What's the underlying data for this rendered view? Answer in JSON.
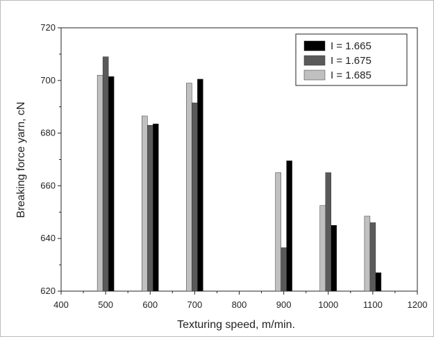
{
  "chart_data": {
    "type": "bar",
    "title": "",
    "xlabel": "Texturing speed, m/min.",
    "ylabel": "Breaking force yarn, cN",
    "x_ticks": [
      "400",
      "500",
      "600",
      "700",
      "800",
      "900",
      "1000",
      "1100",
      "1200"
    ],
    "y_ticks": [
      "620",
      "640",
      "660",
      "680",
      "700",
      "720"
    ],
    "xlim": [
      400,
      1200
    ],
    "ylim": [
      620,
      720
    ],
    "categories": [
      500,
      600,
      700,
      900,
      1000,
      1100
    ],
    "series": [
      {
        "name": "I = 1.665",
        "color": "#000000",
        "values": [
          701.5,
          683.5,
          700.5,
          669.5,
          645,
          627
        ]
      },
      {
        "name": "I = 1.675",
        "color": "#5a5a5a",
        "values": [
          709,
          683,
          691.5,
          636.5,
          665,
          646
        ]
      },
      {
        "name": "I = 1.685",
        "color": "#c0c0c0",
        "values": [
          702,
          686.5,
          699,
          665,
          652.5,
          648.5
        ]
      }
    ],
    "legend_position": "top-right",
    "grid": false
  }
}
